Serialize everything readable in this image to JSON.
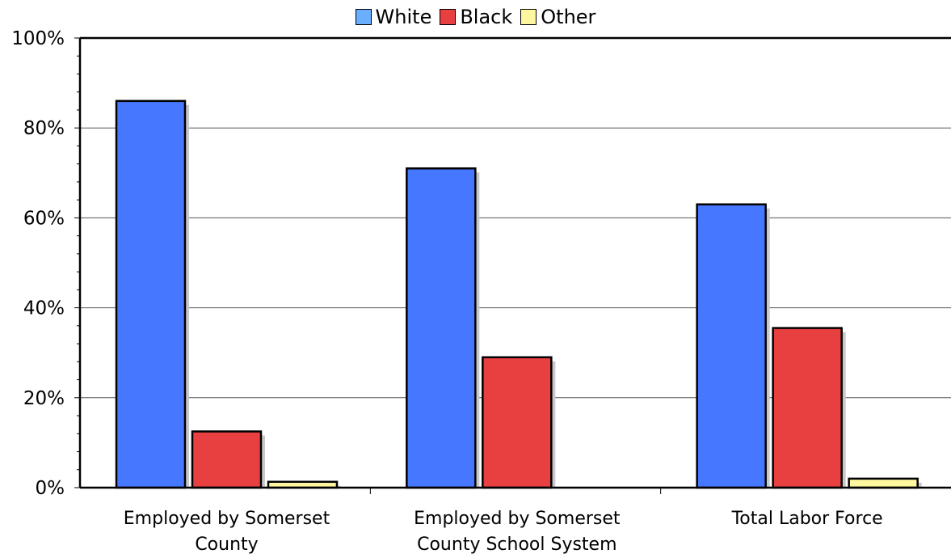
{
  "chart_data": {
    "type": "bar",
    "categories": [
      [
        "Employed by Somerset",
        "County"
      ],
      [
        "Employed by Somerset",
        "County School System"
      ],
      [
        "Total Labor Force"
      ]
    ],
    "series": [
      {
        "name": "White",
        "color": "#4678ff",
        "legend_color": "#6aaeff",
        "values": [
          86,
          71,
          63
        ]
      },
      {
        "name": "Black",
        "color": "#e84040",
        "legend_color": "#e84040",
        "values": [
          12.5,
          29,
          35.5
        ]
      },
      {
        "name": "Other",
        "color": "#fff6a0",
        "legend_color": "#fff6a0",
        "values": [
          1.3,
          0,
          2
        ]
      }
    ],
    "ylim": [
      0,
      100
    ],
    "y_ticks": [
      0,
      20,
      40,
      60,
      80,
      100
    ],
    "y_tick_labels": [
      "0%",
      "20%",
      "40%",
      "60%",
      "80%",
      "100%"
    ],
    "grid": true,
    "legend_position": "top-center",
    "title": "",
    "xlabel": "",
    "ylabel": ""
  }
}
